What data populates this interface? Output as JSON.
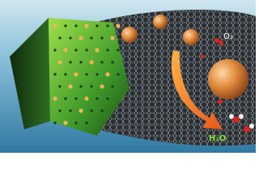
{
  "labels": {
    "oxygen": "O₂",
    "water": "H₂O"
  }
}
